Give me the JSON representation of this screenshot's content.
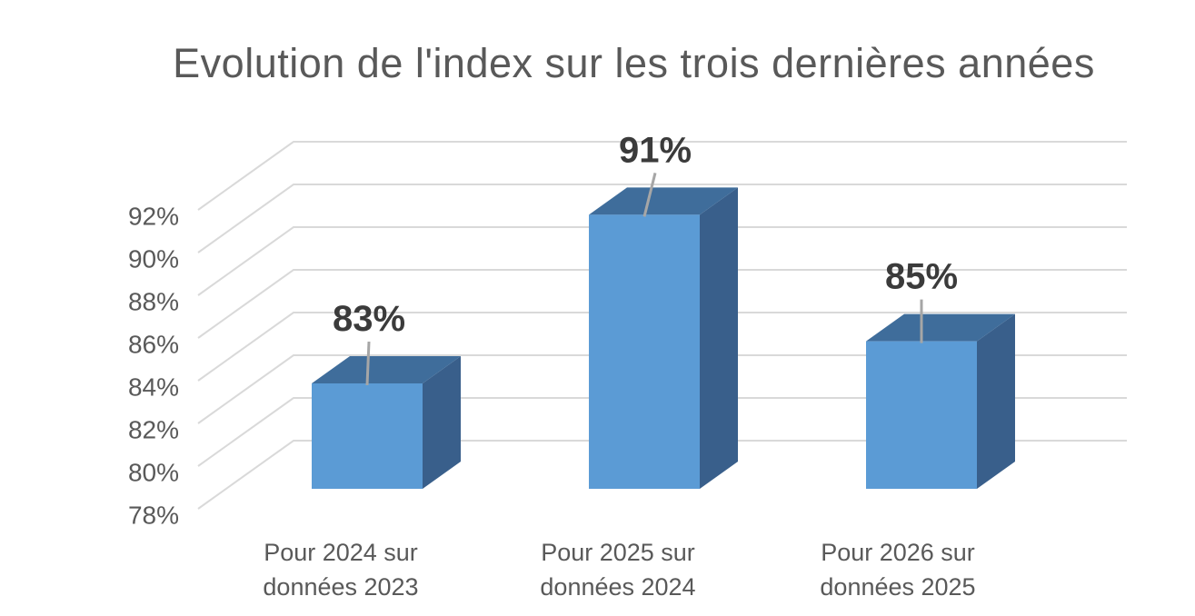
{
  "chart_data": {
    "type": "bar",
    "variant": "3d-column",
    "title": "Evolution de l'index sur les trois dernières années",
    "categories": [
      "Pour 2024 sur données 2023",
      "Pour 2025 sur données 2024",
      "Pour 2026 sur données 2025"
    ],
    "category_label_lines": [
      [
        "Pour 2024 sur",
        "données 2023"
      ],
      [
        "Pour 2025 sur",
        "données 2024"
      ],
      [
        "Pour 2026 sur",
        "données 2025"
      ]
    ],
    "values": [
      83,
      91,
      85
    ],
    "data_labels": [
      "83%",
      "91%",
      "85%"
    ],
    "unit": "%",
    "xlabel": "",
    "ylabel": "",
    "ylim": [
      78,
      92
    ],
    "ytick_step": 2,
    "yticks": [
      "92%",
      "90%",
      "88%",
      "86%",
      "84%",
      "82%",
      "80%",
      "78%"
    ],
    "grid": true,
    "legend": false,
    "colors": {
      "bar_front": "#5B9BD5",
      "bar_top": "#3F6D9B",
      "bar_side": "#395F8B",
      "gridline": "#D9D9D9",
      "leader_line": "#A6A6A6",
      "title_text": "#595959",
      "axis_text": "#595959",
      "data_label_text": "#3B3B3B",
      "background": "#FFFFFF"
    }
  }
}
